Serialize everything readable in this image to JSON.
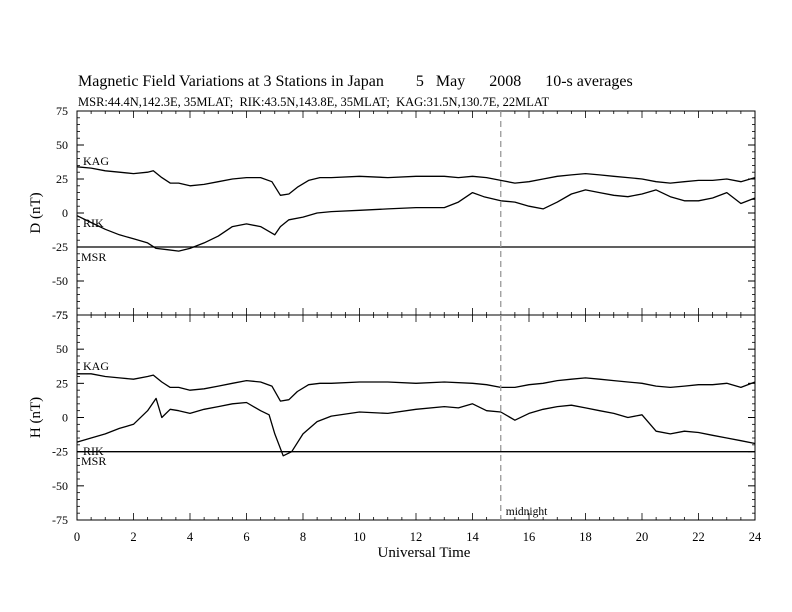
{
  "chart_data": [
    {
      "type": "line",
      "title": "Magnetic Field Variations at 3 Stations in Japan        5   May      2008      10-s averages",
      "subtitle": "MSR:44.4N,142.3E, 35MLAT;  RIK:43.5N,143.8E, 35MLAT;  KAG:31.5N,130.7E, 22MLAT",
      "ylabel": "D (nT)",
      "xlabel": "",
      "xlim": [
        0,
        24
      ],
      "ylim": [
        -75,
        75
      ],
      "yticks": [
        "-75",
        "-50",
        "-25",
        "0",
        "25",
        "50",
        "75"
      ],
      "annotations": [
        {
          "text": "midnight",
          "x": 15
        }
      ],
      "series": [
        {
          "name": "KAG",
          "x": [
            0,
            0.5,
            1,
            1.5,
            2,
            2.5,
            2.7,
            3,
            3.3,
            3.6,
            4,
            4.5,
            5,
            5.5,
            6,
            6.5,
            6.9,
            7.2,
            7.5,
            7.8,
            8.2,
            8.6,
            9,
            10,
            11,
            12,
            13,
            13.5,
            14,
            14.5,
            15,
            15.5,
            16,
            16.5,
            17,
            17.5,
            18,
            18.5,
            19,
            19.5,
            20,
            20.5,
            21,
            21.5,
            22,
            22.5,
            23,
            23.5,
            24
          ],
          "y": [
            34,
            33,
            31,
            30,
            29,
            30,
            31,
            26,
            22,
            22,
            20,
            21,
            23,
            25,
            26,
            26,
            23,
            13,
            14,
            19,
            24,
            26,
            26,
            27,
            26,
            27,
            27,
            26,
            27,
            26,
            24,
            22,
            23,
            25,
            27,
            28,
            29,
            28,
            27,
            26,
            25,
            23,
            22,
            23,
            24,
            24,
            25,
            23,
            26
          ]
        },
        {
          "name": "RIK",
          "x": [
            0,
            0.5,
            1,
            1.5,
            2,
            2.5,
            2.8,
            3.2,
            3.6,
            4,
            4.5,
            5,
            5.5,
            6,
            6.5,
            7,
            7.2,
            7.5,
            8,
            8.5,
            9,
            10,
            11,
            12,
            13,
            13.5,
            14,
            14.4,
            15,
            15.5,
            16,
            16.5,
            17,
            17.5,
            18,
            18.5,
            19,
            19.5,
            20,
            20.5,
            21,
            21.5,
            22,
            22.5,
            23,
            23.5,
            24
          ],
          "y": [
            -2,
            -7,
            -12,
            -16,
            -19,
            -22,
            -26,
            -27,
            -28,
            -26,
            -22,
            -17,
            -10,
            -8,
            -10,
            -16,
            -10,
            -5,
            -3,
            0,
            1,
            2,
            3,
            4,
            4,
            8,
            15,
            12,
            9,
            8,
            5,
            3,
            8,
            14,
            17,
            15,
            13,
            12,
            14,
            17,
            12,
            9,
            9,
            11,
            15,
            7,
            11
          ]
        },
        {
          "name": "MSR",
          "x": [
            0,
            24
          ],
          "y": [
            -25,
            -25
          ]
        }
      ]
    },
    {
      "type": "line",
      "ylabel": "H (nT)",
      "xlabel": "Universal Time",
      "xlim": [
        0,
        24
      ],
      "ylim": [
        -75,
        75
      ],
      "xticks": [
        "0",
        "2",
        "4",
        "6",
        "8",
        "10",
        "12",
        "14",
        "16",
        "18",
        "20",
        "22",
        "24"
      ],
      "yticks": [
        "-75",
        "-50",
        "-25",
        "0",
        "25",
        "50",
        "75"
      ],
      "series": [
        {
          "name": "KAG",
          "x": [
            0,
            0.5,
            1,
            1.5,
            2,
            2.5,
            2.7,
            3,
            3.3,
            3.6,
            4,
            4.5,
            5,
            5.5,
            6,
            6.5,
            6.9,
            7.2,
            7.5,
            7.8,
            8.2,
            8.6,
            9,
            10,
            11,
            12,
            13,
            14,
            14.5,
            15,
            15.5,
            16,
            16.5,
            17,
            17.5,
            18,
            18.5,
            19,
            19.5,
            20,
            20.5,
            21,
            21.5,
            22,
            22.5,
            23,
            23.5,
            24
          ],
          "y": [
            32,
            32,
            30,
            29,
            28,
            30,
            31,
            26,
            22,
            22,
            20,
            21,
            23,
            25,
            27,
            26,
            23,
            12,
            13,
            19,
            24,
            25,
            25,
            26,
            26,
            25,
            26,
            25,
            24,
            22,
            22,
            24,
            25,
            27,
            28,
            29,
            28,
            27,
            26,
            25,
            23,
            22,
            23,
            24,
            24,
            25,
            22,
            26
          ]
        },
        {
          "name": "RIK",
          "x": [
            0,
            0.5,
            1,
            1.5,
            2,
            2.5,
            2.8,
            3,
            3.3,
            3.6,
            4,
            4.5,
            5,
            5.5,
            6,
            6.5,
            6.8,
            7,
            7.3,
            7.6,
            8,
            8.5,
            9,
            10,
            11,
            12,
            13,
            13.5,
            14,
            14.5,
            15,
            15.5,
            16,
            16.5,
            17,
            17.5,
            18,
            18.5,
            19,
            19.5,
            20,
            20.5,
            21,
            21.5,
            22,
            22.5,
            23,
            23.5,
            24
          ],
          "y": [
            -18,
            -15,
            -12,
            -8,
            -5,
            5,
            14,
            0,
            6,
            5,
            3,
            6,
            8,
            10,
            11,
            5,
            2,
            -12,
            -28,
            -25,
            -12,
            -3,
            1,
            4,
            3,
            6,
            8,
            7,
            10,
            5,
            4,
            -2,
            3,
            6,
            8,
            9,
            7,
            5,
            3,
            0,
            2,
            -10,
            -12,
            -10,
            -11,
            -13,
            -15,
            -17,
            -19
          ]
        },
        {
          "name": "MSR",
          "x": [
            0,
            24
          ],
          "y": [
            -25,
            -25
          ]
        }
      ]
    }
  ],
  "labels": {
    "upper": {
      "kag": "KAG",
      "rik": "RIK",
      "msr": "MSR"
    },
    "lower": {
      "kag": "KAG",
      "rik": "RIK",
      "msr": "MSR"
    }
  }
}
